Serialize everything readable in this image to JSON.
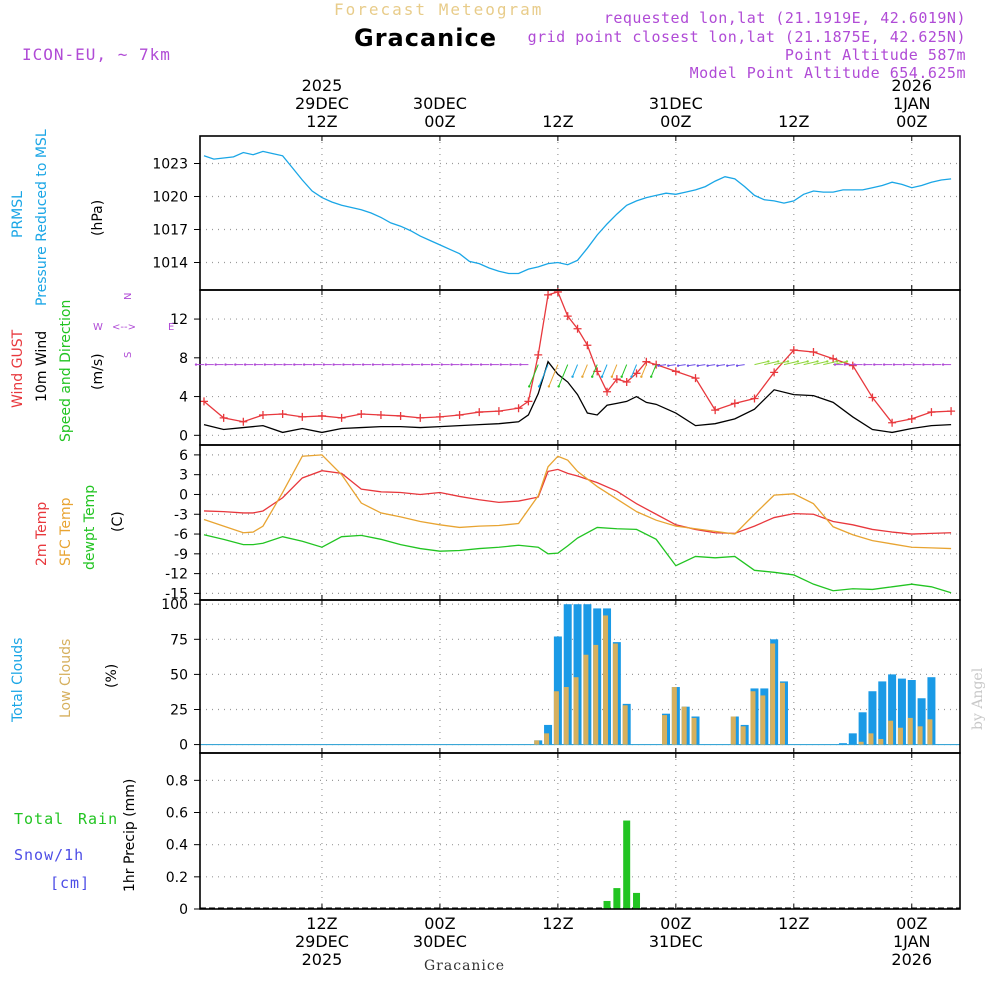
{
  "header": {
    "faded_title": "Forecast Meteogram",
    "location": "Gracanice",
    "model": "ICON-EU, ~ 7km",
    "requested": "requested lon,lat (21.1919E, 42.6019N)",
    "grid_point": "grid point closest lon,lat (21.1875E, 42.625N)",
    "point_altitude": "Point Altitude 587m",
    "model_altitude": "Model Point Altitude 654.625m",
    "footer_location": "Gracanice",
    "watermark": "by Angel"
  },
  "time_axis": {
    "top": [
      {
        "l1": "2025",
        "l2": "29DEC",
        "l3": "12Z",
        "h": 12
      },
      {
        "l1": "",
        "l2": "30DEC",
        "l3": "00Z",
        "h": 24
      },
      {
        "l1": "",
        "l2": "",
        "l3": "12Z",
        "h": 36
      },
      {
        "l1": "",
        "l2": "31DEC",
        "l3": "00Z",
        "h": 48
      },
      {
        "l1": "",
        "l2": "",
        "l3": "12Z",
        "h": 60
      },
      {
        "l1": "2026",
        "l2": "1JAN",
        "l3": "00Z",
        "h": 72
      }
    ],
    "bottom": [
      {
        "l1": "12Z",
        "l2": "29DEC",
        "l3": "2025",
        "h": 12
      },
      {
        "l1": "00Z",
        "l2": "30DEC",
        "l3": "",
        "h": 24
      },
      {
        "l1": "12Z",
        "l2": "",
        "l3": "",
        "h": 36
      },
      {
        "l1": "00Z",
        "l2": "31DEC",
        "l3": "",
        "h": 48
      },
      {
        "l1": "12Z",
        "l2": "",
        "l3": "",
        "h": 60
      },
      {
        "l1": "00Z",
        "l2": "1JAN",
        "l3": "2026",
        "h": 72
      }
    ]
  },
  "panel_labels": {
    "pressure": {
      "l1": "PRMSL",
      "l2": "Pressure Reduced to MSL",
      "unit": "(hPa)"
    },
    "wind": {
      "l1": "Wind GUST",
      "l2": "10m Wind",
      "l3": "Speed and Direction",
      "unit": "(m/s)",
      "compass_n": "N",
      "compass_s": "S",
      "compass_w": "W",
      "compass_e": "E"
    },
    "temp": {
      "l1": "2m Temp",
      "l2": "SFC Temp",
      "l3": "dewpt Temp",
      "unit": "(C)"
    },
    "clouds": {
      "l1": "Total Clouds",
      "l2": "Low Clouds",
      "unit": "(%)"
    },
    "precip": {
      "l1": "Total",
      "l2": "Rain",
      "l3": "Snow/1h",
      "l4": "[cm]",
      "unit": "1hr Precip (mm)"
    }
  },
  "colors": {
    "pressure": "#1aa6e6",
    "gust": "#e8383d",
    "wind": "#000000",
    "t2m": "#e8383d",
    "tsfc": "#e8a432",
    "dewpt": "#22c422",
    "total_clouds": "#1a9ae6",
    "low_clouds": "#d6b05e",
    "rain": "#22c422",
    "snow": "#4d4de6",
    "purple": "#b04bd6",
    "grid": "#9a9a9a"
  },
  "chart_data": [
    {
      "type": "line",
      "name": "pressure",
      "ylim": [
        1011.5,
        1025.5
      ],
      "yticks": [
        1014,
        1017,
        1020,
        1023
      ],
      "x": [
        0,
        1,
        2,
        3,
        4,
        5,
        6,
        7,
        8,
        9,
        10,
        11,
        12,
        13,
        14,
        15,
        16,
        17,
        18,
        19,
        20,
        21,
        22,
        23,
        24,
        25,
        26,
        27,
        28,
        29,
        30,
        31,
        32,
        33,
        34,
        35,
        36,
        37,
        38,
        39,
        40,
        41,
        42,
        43,
        44,
        45,
        46,
        47,
        48,
        49,
        50,
        51,
        52,
        53,
        54,
        55,
        56,
        57,
        58,
        59,
        60,
        61,
        62,
        63,
        64,
        65,
        66,
        67,
        68,
        69,
        70,
        71,
        72,
        73,
        74,
        75,
        76
      ],
      "series": [
        {
          "values": [
            1023.7,
            1023.4,
            1023.5,
            1023.6,
            1024.0,
            1023.8,
            1024.1,
            1023.9,
            1023.7,
            1022.6,
            1021.5,
            1020.5,
            1019.9,
            1019.5,
            1019.2,
            1019.0,
            1018.8,
            1018.5,
            1018.1,
            1017.6,
            1017.3,
            1016.9,
            1016.4,
            1016.0,
            1015.6,
            1015.2,
            1014.8,
            1014.1,
            1013.9,
            1013.5,
            1013.2,
            1013.0,
            1013.0,
            1013.4,
            1013.6,
            1013.9,
            1014.0,
            1013.8,
            1014.2,
            1015.3,
            1016.5,
            1017.5,
            1018.4,
            1019.2,
            1019.6,
            1019.9,
            1020.1,
            1020.3,
            1020.2,
            1020.4,
            1020.6,
            1020.9,
            1021.4,
            1021.8,
            1021.6,
            1020.9,
            1020.1,
            1019.7,
            1019.6,
            1019.4,
            1019.6,
            1020.2,
            1020.5,
            1020.4,
            1020.4,
            1020.6,
            1020.6,
            1020.6,
            1020.8,
            1021.0,
            1021.3,
            1021.1,
            1020.8,
            1021.0,
            1021.3,
            1021.5,
            1021.6
          ]
        }
      ]
    },
    {
      "type": "line",
      "name": "wind",
      "ylim": [
        -1,
        15
      ],
      "yticks": [
        0,
        4,
        8,
        12
      ],
      "x": [
        0,
        2,
        4,
        6,
        8,
        10,
        12,
        14,
        16,
        18,
        20,
        22,
        24,
        26,
        28,
        30,
        32,
        33,
        34,
        35,
        36,
        37,
        38,
        39,
        40,
        41,
        42,
        43,
        44,
        45,
        46,
        48,
        50,
        52,
        54,
        56,
        58,
        60,
        62,
        64,
        66,
        68,
        70,
        72,
        74,
        76
      ],
      "series": [
        {
          "name": "gust",
          "values": [
            3.5,
            1.8,
            1.4,
            2.1,
            2.2,
            1.9,
            2.0,
            1.8,
            2.2,
            2.1,
            2.0,
            1.8,
            1.9,
            2.1,
            2.4,
            2.5,
            2.8,
            3.5,
            8.3,
            14.5,
            14.8,
            12.3,
            11.0,
            9.3,
            6.6,
            4.5,
            5.8,
            5.5,
            6.4,
            7.6,
            7.3,
            6.6,
            5.9,
            2.6,
            3.3,
            3.8,
            6.5,
            8.8,
            8.6,
            7.9,
            7.2,
            3.9,
            1.3,
            1.7,
            2.4,
            2.5
          ]
        },
        {
          "name": "wind",
          "values": [
            1.1,
            0.6,
            0.8,
            1.0,
            0.3,
            0.7,
            0.3,
            0.7,
            0.8,
            0.9,
            0.9,
            0.8,
            0.9,
            1.0,
            1.1,
            1.2,
            1.4,
            2.1,
            4.3,
            7.6,
            6.3,
            5.5,
            4.2,
            2.3,
            2.1,
            3.1,
            3.3,
            3.5,
            4.0,
            3.4,
            3.2,
            2.3,
            1.0,
            1.2,
            1.7,
            2.7,
            4.7,
            4.2,
            4.1,
            3.4,
            1.9,
            0.6,
            0.3,
            0.7,
            1.0,
            1.1
          ]
        }
      ]
    },
    {
      "type": "line",
      "name": "temperature",
      "ylim": [
        -16,
        7.5
      ],
      "yticks": [
        -15,
        -12,
        -9,
        -6,
        -3,
        0,
        3,
        6
      ],
      "x": [
        0,
        2,
        4,
        5,
        6,
        8,
        10,
        12,
        14,
        16,
        18,
        20,
        22,
        24,
        26,
        28,
        30,
        32,
        34,
        35,
        36,
        37,
        38,
        40,
        42,
        44,
        46,
        48,
        50,
        52,
        54,
        56,
        58,
        60,
        62,
        64,
        66,
        68,
        70,
        72,
        74,
        76
      ],
      "series": [
        {
          "name": "2m",
          "values": [
            -2.5,
            -2.6,
            -2.8,
            -2.8,
            -2.5,
            -0.5,
            2.5,
            3.6,
            3.2,
            0.8,
            0.4,
            0.3,
            0.0,
            0.3,
            -0.3,
            -0.8,
            -1.2,
            -1.0,
            -0.4,
            3.5,
            3.8,
            3.2,
            2.8,
            1.8,
            0.5,
            -1.4,
            -3.0,
            -4.6,
            -5.3,
            -5.8,
            -5.9,
            -4.8,
            -3.5,
            -2.9,
            -3.0,
            -4.1,
            -4.6,
            -5.3,
            -5.7,
            -6.0,
            -5.9,
            -5.8
          ]
        },
        {
          "name": "sfc",
          "values": [
            -3.8,
            -4.8,
            -5.8,
            -5.7,
            -4.8,
            0.3,
            5.8,
            6.0,
            3.0,
            -1.3,
            -2.8,
            -3.4,
            -4.1,
            -4.6,
            -5.0,
            -4.8,
            -4.7,
            -4.4,
            -0.2,
            4.2,
            5.8,
            5.2,
            3.5,
            1.2,
            -0.7,
            -2.6,
            -3.9,
            -4.8,
            -5.2,
            -5.6,
            -6.0,
            -3.0,
            -0.1,
            0.1,
            -1.4,
            -4.9,
            -6.1,
            -7.0,
            -7.5,
            -8.0,
            -8.1,
            -8.2
          ]
        },
        {
          "name": "dewpt",
          "values": [
            -6.1,
            -6.8,
            -7.6,
            -7.6,
            -7.4,
            -6.4,
            -7.1,
            -8.0,
            -6.4,
            -6.2,
            -6.8,
            -7.6,
            -8.2,
            -8.6,
            -8.5,
            -8.2,
            -8.0,
            -7.7,
            -8.0,
            -9.0,
            -8.9,
            -7.8,
            -6.6,
            -5.0,
            -5.2,
            -5.3,
            -6.8,
            -10.8,
            -9.4,
            -9.6,
            -9.4,
            -11.5,
            -11.8,
            -12.2,
            -13.6,
            -14.6,
            -14.3,
            -14.4,
            -14.0,
            -13.6,
            -14.0,
            -14.9
          ]
        }
      ]
    },
    {
      "type": "bar",
      "name": "clouds",
      "ylim": [
        -6,
        103
      ],
      "yticks": [
        0,
        25,
        50,
        75,
        100
      ],
      "x": [
        34,
        35,
        36,
        37,
        38,
        39,
        40,
        41,
        42,
        43,
        44,
        45,
        46,
        47,
        48,
        49,
        50,
        51,
        52,
        53,
        54,
        55,
        56,
        57,
        58,
        59,
        60,
        61,
        62,
        63,
        64,
        65,
        66,
        67,
        68,
        69,
        70,
        71,
        72,
        73,
        74,
        75,
        76
      ],
      "series": [
        {
          "name": "total",
          "values": [
            3,
            14,
            77,
            100,
            100,
            100,
            97,
            97,
            73,
            29,
            0,
            0,
            0,
            22,
            41,
            27,
            20,
            0,
            0,
            0,
            20,
            14,
            40,
            40,
            75,
            45,
            0,
            0,
            0,
            0,
            0,
            1,
            8,
            23,
            38,
            45,
            50,
            47,
            46,
            33,
            48,
            0,
            0
          ]
        },
        {
          "name": "low",
          "values": [
            3,
            8,
            38,
            41,
            48,
            64,
            71,
            92,
            72,
            28,
            0,
            0,
            0,
            21,
            41,
            27,
            19,
            0,
            0,
            0,
            20,
            13,
            38,
            35,
            72,
            44,
            0,
            0,
            0,
            0,
            0,
            0,
            0,
            2,
            8,
            4,
            17,
            12,
            19,
            13,
            18,
            0,
            0
          ]
        }
      ]
    },
    {
      "type": "bar",
      "name": "precip",
      "ylim": [
        0,
        0.97
      ],
      "yticks": [
        0,
        0.2,
        0.4,
        0.6,
        0.8
      ],
      "x": [
        41,
        42,
        43,
        44
      ],
      "series": [
        {
          "name": "rain",
          "values": [
            0.05,
            0.13,
            0.55,
            0.1
          ]
        }
      ]
    }
  ]
}
